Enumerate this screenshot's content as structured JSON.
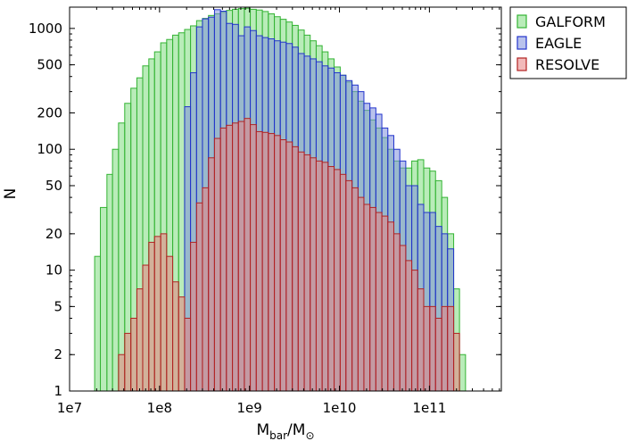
{
  "chart_data": {
    "type": "histogram",
    "title": "",
    "xlabel": "M_bar/M_⊙",
    "ylabel": "N",
    "x_scale": "log",
    "y_scale": "log",
    "xlim": [
      10000000.0,
      630000000000.0
    ],
    "ylim": [
      1,
      1500
    ],
    "x_ticks": [
      {
        "value": 10000000.0,
        "label": "1e7"
      },
      {
        "value": 100000000.0,
        "label": "1e8"
      },
      {
        "value": 1000000000.0,
        "label": "1e9"
      },
      {
        "value": 10000000000.0,
        "label": "1e10"
      },
      {
        "value": 100000000000.0,
        "label": "1e11"
      }
    ],
    "y_ticks": [
      {
        "value": 1,
        "label": "1"
      },
      {
        "value": 2,
        "label": "2"
      },
      {
        "value": 5,
        "label": "5"
      },
      {
        "value": 10,
        "label": "10"
      },
      {
        "value": 20,
        "label": "20"
      },
      {
        "value": 50,
        "label": "50"
      },
      {
        "value": 100,
        "label": "100"
      },
      {
        "value": 200,
        "label": "200"
      },
      {
        "value": 500,
        "label": "500"
      },
      {
        "value": 1000,
        "label": "1000"
      }
    ],
    "bin_edges": [
      19000000.0,
      22000000.0,
      26000000.0,
      30000000.0,
      35000000.0,
      41000000.0,
      48000000.0,
      56000000.0,
      65000000.0,
      76000000.0,
      88000000.0,
      103000000.0,
      120000000.0,
      140000000.0,
      163000000.0,
      190000000.0,
      221000000.0,
      258000000.0,
      300000000.0,
      350000000.0,
      408000000.0,
      476000000.0,
      554000000.0,
      646000000.0,
      753000000.0,
      877000000.0,
      1020000000.0,
      1190000000.0,
      1390000000.0,
      1620000000.0,
      1890000000.0,
      2200000000.0,
      2560000000.0,
      2990000000.0,
      3480000000.0,
      4060000000.0,
      4730000000.0,
      5510000000.0,
      6420000000.0,
      7480000000.0,
      8720000000.0,
      10200000000.0,
      11800000000.0,
      13800000000.0,
      16100000000.0,
      18700000000.0,
      21800000000.0,
      25400000000.0,
      29600000000.0,
      34500000000.0,
      40200000000.0,
      46900000000.0,
      54600000000.0,
      63600000000.0,
      74100000000.0,
      86400000000.0,
      101000000000.0,
      117000000000.0,
      137000000000.0,
      159000000000.0,
      186000000000.0,
      216000000000.0,
      252000000000.0,
      294000000000.0,
      342000000000.0
    ],
    "series": [
      {
        "name": "GALFORM",
        "fill": "#7fdc7f",
        "edge": "#33b333",
        "values": [
          13,
          33,
          62,
          100,
          165,
          240,
          320,
          390,
          490,
          560,
          640,
          760,
          810,
          880,
          920,
          980,
          1050,
          1160,
          1210,
          1280,
          1320,
          1360,
          1410,
          1440,
          1460,
          1470,
          1440,
          1420,
          1380,
          1320,
          1250,
          1190,
          1130,
          1060,
          970,
          880,
          790,
          720,
          640,
          560,
          480,
          410,
          360,
          300,
          250,
          210,
          175,
          150,
          125,
          100,
          80,
          70,
          70,
          80,
          82,
          70,
          66,
          55,
          40,
          20,
          7,
          2,
          1,
          1
        ]
      },
      {
        "name": "EAGLE",
        "fill": "#7f8fdc",
        "edge": "#2233cc",
        "values": [
          0,
          0,
          0,
          0,
          0,
          0,
          0,
          0,
          0,
          0,
          0,
          0,
          0,
          0,
          0,
          225,
          430,
          1030,
          1200,
          1240,
          1430,
          1390,
          1100,
          1080,
          870,
          1030,
          960,
          870,
          840,
          820,
          790,
          770,
          750,
          700,
          620,
          590,
          560,
          530,
          490,
          470,
          430,
          410,
          370,
          340,
          300,
          240,
          220,
          195,
          150,
          130,
          100,
          80,
          50,
          50,
          35,
          30,
          30,
          23,
          20,
          15,
          0,
          0,
          0,
          0
        ]
      },
      {
        "name": "RESOLVE",
        "fill": "#e88282",
        "edge": "#b22222",
        "values": [
          0,
          0,
          0,
          0,
          2,
          3,
          4,
          7,
          11,
          17,
          19,
          20,
          13,
          8,
          6,
          4,
          17,
          36,
          48,
          85,
          123,
          150,
          158,
          165,
          170,
          180,
          160,
          140,
          138,
          135,
          130,
          120,
          115,
          105,
          95,
          90,
          85,
          80,
          78,
          72,
          68,
          62,
          55,
          48,
          40,
          35,
          33,
          30,
          28,
          25,
          20,
          16,
          12,
          10,
          7,
          5,
          5,
          4,
          5,
          5,
          3,
          0,
          0,
          0
        ]
      }
    ],
    "legend": {
      "placement": "outside-right-top",
      "items": [
        "GALFORM",
        "EAGLE",
        "RESOLVE"
      ]
    },
    "grid": false
  }
}
